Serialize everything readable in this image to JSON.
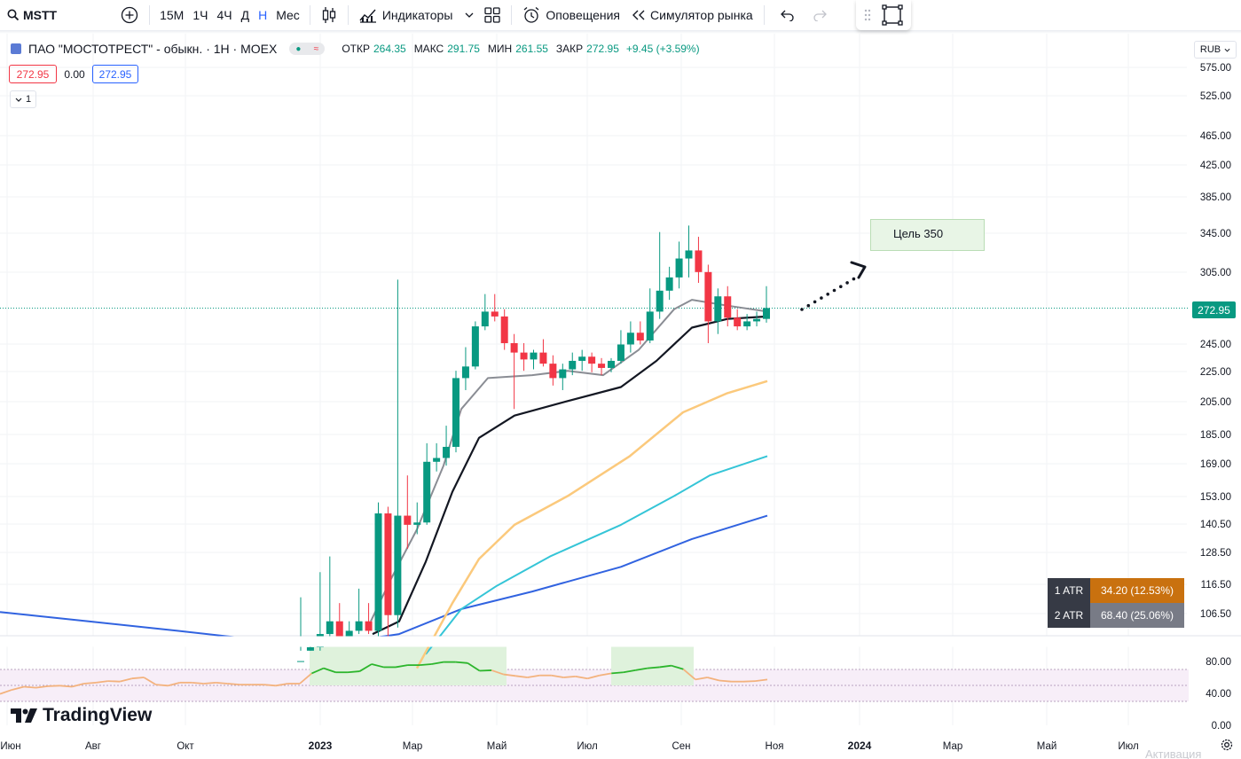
{
  "toolbar": {
    "symbol": "MSTT",
    "timeframes": [
      "15M",
      "1Ч",
      "4Ч",
      "Д",
      "Н",
      "Мес"
    ],
    "active_timeframe": "Н",
    "indicators_label": "Индикаторы",
    "alerts_label": "Оповещения",
    "replay_label": "Симулятор рынка"
  },
  "legend": {
    "title": "ПАО \"МОСТОТРЕСТ\" - обыкн. · 1Н · MOEX",
    "open_label": "ОТКР",
    "open": "264.35",
    "high_label": "МАКС",
    "high": "291.75",
    "low_label": "МИН",
    "low": "261.55",
    "close_label": "ЗАКР",
    "close": "272.95",
    "change": "+9.45 (+3.59%)",
    "bid": "272.95",
    "spread": "0.00",
    "ask": "272.95",
    "collapsed_count": "1"
  },
  "currency": "RUB",
  "goal_label": "Цель 350",
  "last_price": "272.95",
  "atr": [
    {
      "label": "1 ATR",
      "value": "34.20 (12.53%)"
    },
    {
      "label": "2 ATR",
      "value": "68.40 (25.06%)"
    }
  ],
  "logo_text": "TradingView",
  "activation_text": "Активация",
  "colors": {
    "up": "#089981",
    "down": "#f23645",
    "ma_gray": "#8a8d94",
    "ma_black": "#131722",
    "ma_orange": "#fbc97c",
    "ma_cyan": "#35c5d7",
    "ma_blue": "#3163e0",
    "rsi": "#f3b27d",
    "rsi_high": "#2cb52c"
  },
  "chart_data": {
    "type": "candlestick",
    "y_ticks": [
      "575.00",
      "525.00",
      "465.00",
      "425.00",
      "385.00",
      "345.00",
      "305.00",
      "245.00",
      "225.00",
      "205.00",
      "185.00",
      "169.00",
      "153.00",
      "140.50",
      "128.50",
      "116.50",
      "106.50"
    ],
    "rsi_ticks": [
      "80.00",
      "40.00",
      "0.00"
    ],
    "x_ticks": [
      "Июн",
      "Авг",
      "Окт",
      "2023",
      "Мар",
      "Май",
      "Июл",
      "Сен",
      "Ноя",
      "2024",
      "Мар",
      "Май",
      "Июл"
    ],
    "candles": [
      {
        "o": 90,
        "h": 112,
        "l": 90,
        "c": 92
      },
      {
        "o": 94,
        "h": 98,
        "l": 92,
        "c": 96
      },
      {
        "o": 96,
        "h": 121,
        "l": 95,
        "c": 100
      },
      {
        "o": 100,
        "h": 127,
        "l": 98,
        "c": 104
      },
      {
        "o": 104,
        "h": 110,
        "l": 101,
        "c": 99
      },
      {
        "o": 99,
        "h": 104,
        "l": 97,
        "c": 101
      },
      {
        "o": 101,
        "h": 115,
        "l": 100,
        "c": 104
      },
      {
        "o": 104,
        "h": 110,
        "l": 100,
        "c": 101
      },
      {
        "o": 101,
        "h": 150,
        "l": 99,
        "c": 145
      },
      {
        "o": 145,
        "h": 148,
        "l": 98,
        "c": 106
      },
      {
        "o": 106,
        "h": 298,
        "l": 102,
        "c": 144
      },
      {
        "o": 144,
        "h": 163,
        "l": 130,
        "c": 140
      },
      {
        "o": 140,
        "h": 150,
        "l": 136,
        "c": 141
      },
      {
        "o": 141,
        "h": 180,
        "l": 140,
        "c": 170
      },
      {
        "o": 170,
        "h": 180,
        "l": 165,
        "c": 172
      },
      {
        "o": 172,
        "h": 190,
        "l": 168,
        "c": 178
      },
      {
        "o": 178,
        "h": 225,
        "l": 175,
        "c": 220
      },
      {
        "o": 220,
        "h": 242,
        "l": 212,
        "c": 228
      },
      {
        "o": 228,
        "h": 262,
        "l": 226,
        "c": 258
      },
      {
        "o": 258,
        "h": 285,
        "l": 255,
        "c": 270
      },
      {
        "o": 270,
        "h": 285,
        "l": 262,
        "c": 266
      },
      {
        "o": 266,
        "h": 272,
        "l": 240,
        "c": 245
      },
      {
        "o": 245,
        "h": 252,
        "l": 200,
        "c": 238
      },
      {
        "o": 238,
        "h": 245,
        "l": 225,
        "c": 233
      },
      {
        "o": 233,
        "h": 240,
        "l": 226,
        "c": 238
      },
      {
        "o": 238,
        "h": 248,
        "l": 228,
        "c": 230
      },
      {
        "o": 230,
        "h": 236,
        "l": 215,
        "c": 220
      },
      {
        "o": 220,
        "h": 230,
        "l": 212,
        "c": 226
      },
      {
        "o": 226,
        "h": 238,
        "l": 222,
        "c": 232
      },
      {
        "o": 232,
        "h": 240,
        "l": 225,
        "c": 235
      },
      {
        "o": 235,
        "h": 238,
        "l": 224,
        "c": 230
      },
      {
        "o": 230,
        "h": 234,
        "l": 222,
        "c": 227
      },
      {
        "o": 227,
        "h": 234,
        "l": 224,
        "c": 232
      },
      {
        "o": 232,
        "h": 255,
        "l": 230,
        "c": 244
      },
      {
        "o": 244,
        "h": 262,
        "l": 238,
        "c": 253
      },
      {
        "o": 253,
        "h": 262,
        "l": 244,
        "c": 247
      },
      {
        "o": 247,
        "h": 290,
        "l": 245,
        "c": 270
      },
      {
        "o": 270,
        "h": 345,
        "l": 264,
        "c": 288
      },
      {
        "o": 288,
        "h": 310,
        "l": 280,
        "c": 300
      },
      {
        "o": 300,
        "h": 335,
        "l": 290,
        "c": 318
      },
      {
        "o": 318,
        "h": 352,
        "l": 300,
        "c": 326
      },
      {
        "o": 326,
        "h": 340,
        "l": 295,
        "c": 305
      },
      {
        "o": 305,
        "h": 312,
        "l": 245,
        "c": 262
      },
      {
        "o": 262,
        "h": 290,
        "l": 252,
        "c": 283
      },
      {
        "o": 283,
        "h": 292,
        "l": 258,
        "c": 265
      },
      {
        "o": 265,
        "h": 272,
        "l": 255,
        "c": 258
      },
      {
        "o": 258,
        "h": 268,
        "l": 255,
        "c": 262
      },
      {
        "o": 262,
        "h": 270,
        "l": 258,
        "c": 264
      },
      {
        "o": 264,
        "h": 292,
        "l": 261,
        "c": 273
      }
    ],
    "rsi": [
      30,
      38,
      44,
      42,
      45,
      46,
      44,
      50,
      52,
      55,
      54,
      60,
      62,
      48,
      46,
      52,
      52,
      50,
      52,
      50,
      48,
      48,
      48,
      46,
      50,
      50,
      70,
      80,
      72,
      72,
      74,
      88,
      82,
      82,
      86,
      86,
      88,
      92,
      92,
      90,
      75,
      76,
      68,
      65,
      62,
      66,
      66,
      62,
      64,
      60,
      66,
      70,
      72,
      76,
      80,
      82,
      85,
      78,
      58,
      62,
      56,
      54,
      54,
      55,
      58
    ]
  }
}
